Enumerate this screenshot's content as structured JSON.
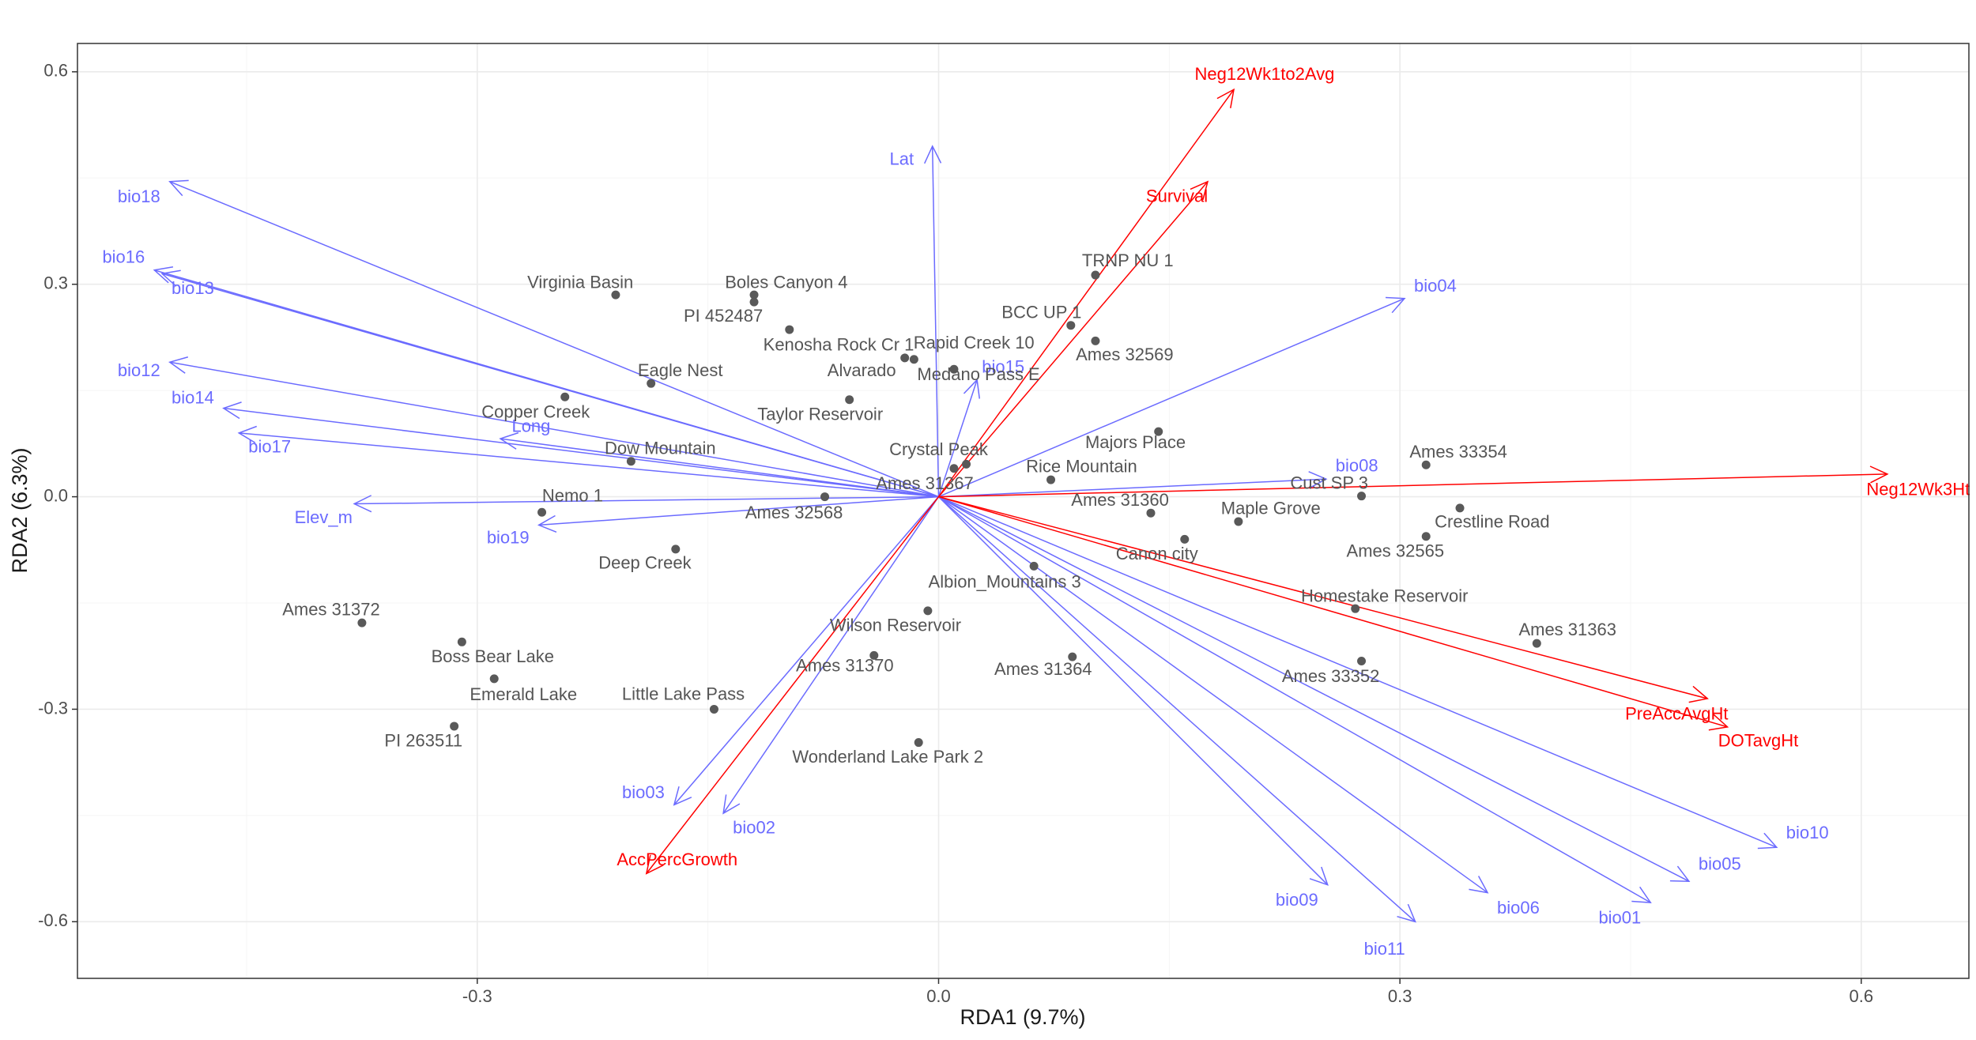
{
  "chart_data": {
    "type": "scatter",
    "title": "",
    "xlabel": "RDA1 (9.7%)",
    "ylabel": "RDA2 (6.3%)",
    "xlim": [
      -0.56,
      0.67
    ],
    "ylim": [
      -0.68,
      0.64
    ],
    "xticks": [
      {
        "v": -0.3,
        "label": "-0.3"
      },
      {
        "v": 0.0,
        "label": "0.0"
      },
      {
        "v": 0.3,
        "label": "0.3"
      },
      {
        "v": 0.6,
        "label": "0.6"
      }
    ],
    "yticks": [
      {
        "v": 0.6,
        "label": "0.6"
      },
      {
        "v": 0.3,
        "label": "0.3"
      },
      {
        "v": 0.0,
        "label": "0.0"
      },
      {
        "v": -0.3,
        "label": "-0.3"
      },
      {
        "v": -0.6,
        "label": "-0.6"
      }
    ],
    "grid": true,
    "colors": {
      "site_point": "#595959",
      "site_label": "#555555",
      "env_arrow": "#6b6bff",
      "trait_arrow": "#ff0000",
      "grid_major": "#ebebeb",
      "grid_minor": "#f5f5f5",
      "axis_text": "#4d4d4d",
      "panel_border": "#333333"
    },
    "sites": [
      {
        "name": "Virginia Basin",
        "x": -0.21,
        "y": 0.285,
        "lx": -0.233,
        "ly": 0.301
      },
      {
        "name": "Boles Canyon 4",
        "x": -0.12,
        "y": 0.285,
        "lx": -0.099,
        "ly": 0.301
      },
      {
        "name": "PI 452487",
        "x": -0.12,
        "y": 0.275,
        "lx": -0.14,
        "ly": 0.254
      },
      {
        "name": "Kenosha Rock Cr 1",
        "x": -0.097,
        "y": 0.236,
        "lx": -0.065,
        "ly": 0.213
      },
      {
        "name": "Rapid Creek 10",
        "x": -0.022,
        "y": 0.196,
        "lx": 0.023,
        "ly": 0.216
      },
      {
        "name": "Alvarado",
        "x": -0.016,
        "y": 0.194,
        "lx": -0.05,
        "ly": 0.177
      },
      {
        "name": "Medano Pass E",
        "x": 0.01,
        "y": 0.18,
        "lx": 0.026,
        "ly": 0.171
      },
      {
        "name": "Eagle Nest",
        "x": -0.187,
        "y": 0.16,
        "lx": -0.168,
        "ly": 0.177
      },
      {
        "name": "Taylor Reservoir",
        "x": -0.058,
        "y": 0.137,
        "lx": -0.077,
        "ly": 0.115
      },
      {
        "name": "TRNP NU 1",
        "x": 0.102,
        "y": 0.313,
        "lx": 0.123,
        "ly": 0.332
      },
      {
        "name": "BCC UP 1",
        "x": 0.086,
        "y": 0.242,
        "lx": 0.067,
        "ly": 0.259
      },
      {
        "name": "Ames 32569",
        "x": 0.102,
        "y": 0.22,
        "lx": 0.121,
        "ly": 0.199
      },
      {
        "name": "Copper Creek",
        "x": -0.243,
        "y": 0.141,
        "lx": -0.262,
        "ly": 0.118
      },
      {
        "name": "Dow Mountain",
        "x": -0.2,
        "y": 0.05,
        "lx": -0.181,
        "ly": 0.067
      },
      {
        "name": "Crystal Peak",
        "x": 0.01,
        "y": 0.04,
        "lx": 0.0,
        "ly": 0.065
      },
      {
        "name": "Majors Place",
        "x": 0.143,
        "y": 0.092,
        "lx": 0.128,
        "ly": 0.075
      },
      {
        "name": "Rice Mountain",
        "x": 0.073,
        "y": 0.024,
        "lx": 0.093,
        "ly": 0.041
      },
      {
        "name": "Ames 31367",
        "x": 0.018,
        "y": 0.046,
        "lx": -0.009,
        "ly": 0.017
      },
      {
        "name": "Ames 33354",
        "x": 0.317,
        "y": 0.045,
        "lx": 0.338,
        "ly": 0.062
      },
      {
        "name": "Cust SP 3",
        "x": 0.275,
        "y": 0.001,
        "lx": 0.254,
        "ly": 0.018
      },
      {
        "name": "Ames 31360",
        "x": 0.138,
        "y": -0.023,
        "lx": 0.118,
        "ly": -0.006
      },
      {
        "name": "Maple Grove",
        "x": 0.195,
        "y": -0.035,
        "lx": 0.216,
        "ly": -0.018
      },
      {
        "name": "Crestline Road",
        "x": 0.339,
        "y": -0.016,
        "lx": 0.36,
        "ly": -0.037
      },
      {
        "name": "Ames 32565",
        "x": 0.317,
        "y": -0.056,
        "lx": 0.297,
        "ly": -0.078
      },
      {
        "name": "Canon city",
        "x": 0.16,
        "y": -0.06,
        "lx": 0.142,
        "ly": -0.082
      },
      {
        "name": "Ames 32568",
        "x": -0.074,
        "y": 0.0,
        "lx": -0.094,
        "ly": -0.024
      },
      {
        "name": "Nemo 1",
        "x": -0.258,
        "y": -0.022,
        "lx": -0.238,
        "ly": 0.0
      },
      {
        "name": "Deep Creek",
        "x": -0.171,
        "y": -0.074,
        "lx": -0.191,
        "ly": -0.095
      },
      {
        "name": "Albion_Mountains 3",
        "x": 0.062,
        "y": -0.098,
        "lx": 0.043,
        "ly": -0.122
      },
      {
        "name": "Homestake Reservoir",
        "x": 0.271,
        "y": -0.158,
        "lx": 0.29,
        "ly": -0.142
      },
      {
        "name": "Ames 31363",
        "x": 0.389,
        "y": -0.207,
        "lx": 0.409,
        "ly": -0.189
      },
      {
        "name": "Wilson Reservoir",
        "x": -0.007,
        "y": -0.161,
        "lx": -0.028,
        "ly": -0.183
      },
      {
        "name": "Ames 31370",
        "x": -0.042,
        "y": -0.224,
        "lx": -0.061,
        "ly": -0.24
      },
      {
        "name": "Ames 31364",
        "x": 0.087,
        "y": -0.226,
        "lx": 0.068,
        "ly": -0.245
      },
      {
        "name": "Ames 33352",
        "x": 0.275,
        "y": -0.232,
        "lx": 0.255,
        "ly": -0.255
      },
      {
        "name": "Ames 31372",
        "x": -0.375,
        "y": -0.178,
        "lx": -0.395,
        "ly": -0.161
      },
      {
        "name": "Boss Bear Lake",
        "x": -0.31,
        "y": -0.205,
        "lx": -0.29,
        "ly": -0.227
      },
      {
        "name": "Emerald Lake",
        "x": -0.289,
        "y": -0.257,
        "lx": -0.27,
        "ly": -0.281
      },
      {
        "name": "Little Lake Pass",
        "x": -0.146,
        "y": -0.3,
        "lx": -0.166,
        "ly": -0.28
      },
      {
        "name": "PI 263511",
        "x": -0.315,
        "y": -0.324,
        "lx": -0.335,
        "ly": -0.346
      },
      {
        "name": "Wonderland Lake Park 2",
        "x": -0.013,
        "y": -0.347,
        "lx": -0.033,
        "ly": -0.369
      }
    ],
    "env_arrows": [
      {
        "name": "bio18",
        "x": -0.5,
        "y": 0.445,
        "lx": -0.52,
        "ly": 0.422
      },
      {
        "name": "bio16",
        "x": -0.51,
        "y": 0.32,
        "lx": -0.53,
        "ly": 0.337
      },
      {
        "name": "bio13",
        "x": -0.505,
        "y": 0.315,
        "lx": -0.485,
        "ly": 0.293
      },
      {
        "name": "bio12",
        "x": -0.5,
        "y": 0.19,
        "lx": -0.52,
        "ly": 0.177
      },
      {
        "name": "bio14",
        "x": -0.465,
        "y": 0.125,
        "lx": -0.485,
        "ly": 0.138
      },
      {
        "name": "bio17",
        "x": -0.455,
        "y": 0.09,
        "lx": -0.435,
        "ly": 0.069
      },
      {
        "name": "Long",
        "x": -0.285,
        "y": 0.082,
        "lx": -0.265,
        "ly": 0.098
      },
      {
        "name": "Elev_m",
        "x": -0.38,
        "y": -0.01,
        "lx": -0.4,
        "ly": -0.031
      },
      {
        "name": "bio19",
        "x": -0.26,
        "y": -0.04,
        "lx": -0.28,
        "ly": -0.059
      },
      {
        "name": "Lat",
        "x": -0.004,
        "y": 0.495,
        "lx": -0.024,
        "ly": 0.475
      },
      {
        "name": "bio15",
        "x": 0.025,
        "y": 0.165,
        "lx": 0.042,
        "ly": 0.182
      },
      {
        "name": "bio04",
        "x": 0.303,
        "y": 0.28,
        "lx": 0.323,
        "ly": 0.296
      },
      {
        "name": "bio08",
        "x": 0.252,
        "y": 0.025,
        "lx": 0.272,
        "ly": 0.042
      },
      {
        "name": "bio03",
        "x": -0.172,
        "y": -0.435,
        "lx": -0.192,
        "ly": -0.419
      },
      {
        "name": "bio02",
        "x": -0.14,
        "y": -0.447,
        "lx": -0.12,
        "ly": -0.469
      },
      {
        "name": "bio09",
        "x": 0.253,
        "y": -0.548,
        "lx": 0.233,
        "ly": -0.571
      },
      {
        "name": "bio06",
        "x": 0.357,
        "y": -0.559,
        "lx": 0.377,
        "ly": -0.582
      },
      {
        "name": "bio11",
        "x": 0.31,
        "y": -0.6,
        "lx": 0.29,
        "ly": -0.64
      },
      {
        "name": "bio01",
        "x": 0.463,
        "y": -0.573,
        "lx": 0.443,
        "ly": -0.596
      },
      {
        "name": "bio05",
        "x": 0.488,
        "y": -0.543,
        "lx": 0.508,
        "ly": -0.52
      },
      {
        "name": "bio10",
        "x": 0.545,
        "y": -0.495,
        "lx": 0.565,
        "ly": -0.476
      }
    ],
    "trait_arrows": [
      {
        "name": "Neg12Wk1to2Avg",
        "x": 0.192,
        "y": 0.575,
        "lx": 0.212,
        "ly": 0.595
      },
      {
        "name": "Survival",
        "x": 0.175,
        "y": 0.445,
        "lx": 0.155,
        "ly": 0.423
      },
      {
        "name": "Neg12Wk3Ht",
        "x": 0.617,
        "y": 0.032,
        "lx": 0.637,
        "ly": 0.009
      },
      {
        "name": "PreAccAvgHt",
        "x": 0.5,
        "y": -0.285,
        "lx": 0.48,
        "ly": -0.308
      },
      {
        "name": "DOTavgHt",
        "x": 0.513,
        "y": -0.325,
        "lx": 0.533,
        "ly": -0.346
      },
      {
        "name": "AccPercGrowth",
        "x": -0.19,
        "y": -0.532,
        "lx": -0.17,
        "ly": -0.514
      }
    ]
  }
}
